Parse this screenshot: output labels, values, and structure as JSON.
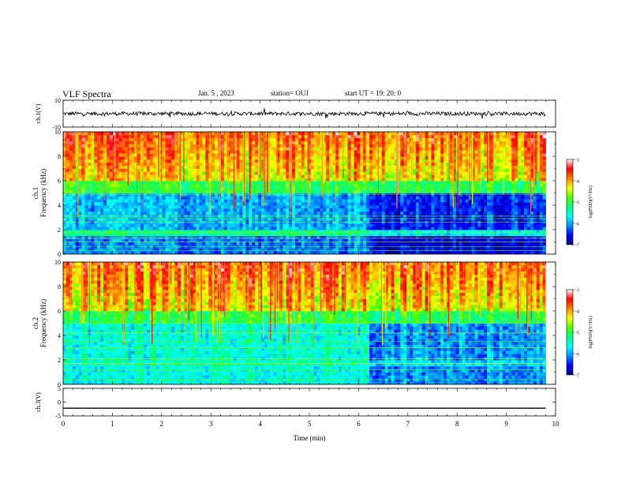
{
  "header": {
    "title": "VLF Spectra",
    "date": "Jan. 5 , 2023",
    "station": "station= OUJ",
    "start": "start  UT =   19: 20: 0"
  },
  "colors": {
    "colormap": [
      "#00007a",
      "#0000ff",
      "#0090ff",
      "#00ffff",
      "#00ff80",
      "#50ff00",
      "#ffff00",
      "#ff8000",
      "#ff0000",
      "#ffffff"
    ],
    "trace": "#000000",
    "axes": "#000000"
  },
  "chart_data": {
    "type": "heatmap",
    "xlabel": "Time  (min)",
    "xlim": [
      0,
      10
    ],
    "xticks": [
      "0",
      "1",
      "2",
      "3",
      "4",
      "5",
      "6",
      "7",
      "8",
      "9",
      "10"
    ],
    "panels": [
      {
        "name": "ch.1(V)",
        "kind": "waveform",
        "ylabel": "ch.1(V)",
        "ylim": [
          -10,
          10
        ],
        "yticks": [
          "10",
          "-10"
        ],
        "mean": 0,
        "amplitude": 2,
        "data_end_min": 9.8
      },
      {
        "name": "ch.1 spectrogram",
        "kind": "spectrogram",
        "ylabel": "ch.1\nFrequency  (kHz)",
        "ylabel_line1": "ch.1",
        "ylabel_line2": "Frequency  (kHz)",
        "ylim": [
          0,
          10
        ],
        "yticks": [
          "0",
          "2",
          "4",
          "6",
          "8",
          "10"
        ],
        "clim": [
          -7,
          -3
        ],
        "colorbar_ticks": [
          "-3",
          "-4",
          "-5",
          "-6",
          "-7"
        ],
        "colorbar_label": "log(PSD)(V²/Hz)",
        "data_end_min": 9.8,
        "regime_change_min": 6.2
      },
      {
        "name": "ch.2 spectrogram",
        "kind": "spectrogram",
        "ylabel": "ch.2\nFrequency  (kHz)",
        "ylabel_line1": "ch.2",
        "ylabel_line2": "Frequency  (kHz)",
        "ylim": [
          0,
          10
        ],
        "yticks": [
          "0",
          "2",
          "4",
          "6",
          "8",
          "10"
        ],
        "clim": [
          -7,
          -3
        ],
        "colorbar_ticks": [
          "-3",
          "-4",
          "-5",
          "-6",
          "-7"
        ],
        "colorbar_label": "log(PSD)(V²/Hz)",
        "data_end_min": 9.8,
        "regime_change_min": 6.2
      },
      {
        "name": "ch.3(V)",
        "kind": "waveform",
        "ylabel": "ch.3(V)",
        "ylim": [
          -5,
          5
        ],
        "yticks": [
          "5",
          "0",
          "-5"
        ],
        "mean": -2.2,
        "amplitude": 0,
        "data_end_min": 9.8
      }
    ]
  }
}
